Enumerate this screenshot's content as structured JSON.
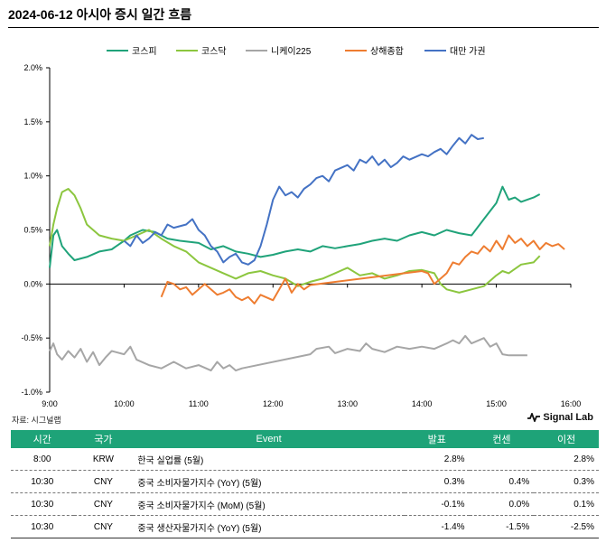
{
  "title": "2024-06-12 아시아 증시 일간 흐름",
  "source": "자료: 시그널랩",
  "brand": "Signal Lab",
  "chart_data": {
    "type": "line",
    "x_ticks": [
      "9:00",
      "10:00",
      "11:00",
      "12:00",
      "13:00",
      "14:00",
      "15:00",
      "16:00"
    ],
    "y_ticks": [
      "2.0%",
      "1.5%",
      "1.0%",
      "0.5%",
      "0.0%",
      "-0.5%",
      "-1.0%"
    ],
    "ylim": [
      -1.0,
      2.0
    ],
    "xlim": [
      "9:00",
      "16:00"
    ],
    "legend_position": "top",
    "grid": false,
    "series": [
      {
        "name": "코스피",
        "color": "#20a37a",
        "points": [
          [
            "9:00",
            0.15
          ],
          [
            "9:03",
            0.45
          ],
          [
            "9:06",
            0.5
          ],
          [
            "9:10",
            0.35
          ],
          [
            "9:15",
            0.28
          ],
          [
            "9:20",
            0.22
          ],
          [
            "9:30",
            0.25
          ],
          [
            "9:40",
            0.3
          ],
          [
            "9:50",
            0.32
          ],
          [
            "10:00",
            0.4
          ],
          [
            "10:05",
            0.45
          ],
          [
            "10:15",
            0.5
          ],
          [
            "10:25",
            0.48
          ],
          [
            "10:35",
            0.42
          ],
          [
            "10:45",
            0.4
          ],
          [
            "11:00",
            0.38
          ],
          [
            "11:10",
            0.32
          ],
          [
            "11:20",
            0.35
          ],
          [
            "11:30",
            0.3
          ],
          [
            "11:40",
            0.28
          ],
          [
            "11:50",
            0.25
          ],
          [
            "12:00",
            0.27
          ],
          [
            "12:10",
            0.3
          ],
          [
            "12:20",
            0.32
          ],
          [
            "12:30",
            0.3
          ],
          [
            "12:40",
            0.35
          ],
          [
            "12:50",
            0.33
          ],
          [
            "13:00",
            0.35
          ],
          [
            "13:10",
            0.37
          ],
          [
            "13:20",
            0.4
          ],
          [
            "13:30",
            0.42
          ],
          [
            "13:40",
            0.4
          ],
          [
            "13:50",
            0.45
          ],
          [
            "14:00",
            0.48
          ],
          [
            "14:10",
            0.45
          ],
          [
            "14:20",
            0.5
          ],
          [
            "14:30",
            0.47
          ],
          [
            "14:40",
            0.45
          ],
          [
            "14:50",
            0.6
          ],
          [
            "15:00",
            0.75
          ],
          [
            "15:05",
            0.9
          ],
          [
            "15:10",
            0.78
          ],
          [
            "15:15",
            0.8
          ],
          [
            "15:20",
            0.76
          ],
          [
            "15:30",
            0.8
          ],
          [
            "15:35",
            0.83
          ]
        ]
      },
      {
        "name": "코스닥",
        "color": "#8cc63f",
        "points": [
          [
            "9:00",
            0.35
          ],
          [
            "9:03",
            0.55
          ],
          [
            "9:06",
            0.7
          ],
          [
            "9:10",
            0.85
          ],
          [
            "9:15",
            0.88
          ],
          [
            "9:20",
            0.82
          ],
          [
            "9:25",
            0.7
          ],
          [
            "9:30",
            0.55
          ],
          [
            "9:40",
            0.45
          ],
          [
            "9:50",
            0.42
          ],
          [
            "10:00",
            0.4
          ],
          [
            "10:10",
            0.45
          ],
          [
            "10:20",
            0.5
          ],
          [
            "10:30",
            0.42
          ],
          [
            "10:40",
            0.35
          ],
          [
            "10:50",
            0.3
          ],
          [
            "11:00",
            0.2
          ],
          [
            "11:10",
            0.15
          ],
          [
            "11:20",
            0.1
          ],
          [
            "11:30",
            0.05
          ],
          [
            "11:40",
            0.1
          ],
          [
            "11:50",
            0.12
          ],
          [
            "12:00",
            0.08
          ],
          [
            "12:10",
            0.05
          ],
          [
            "12:20",
            -0.02
          ],
          [
            "12:30",
            0.02
          ],
          [
            "12:40",
            0.05
          ],
          [
            "12:50",
            0.1
          ],
          [
            "13:00",
            0.15
          ],
          [
            "13:10",
            0.08
          ],
          [
            "13:20",
            0.1
          ],
          [
            "13:30",
            0.05
          ],
          [
            "13:40",
            0.08
          ],
          [
            "13:50",
            0.12
          ],
          [
            "14:00",
            0.13
          ],
          [
            "14:10",
            0.1
          ],
          [
            "14:15",
            0.0
          ],
          [
            "14:20",
            -0.05
          ],
          [
            "14:30",
            -0.08
          ],
          [
            "14:40",
            -0.05
          ],
          [
            "14:50",
            -0.02
          ],
          [
            "15:00",
            0.08
          ],
          [
            "15:05",
            0.12
          ],
          [
            "15:10",
            0.1
          ],
          [
            "15:20",
            0.18
          ],
          [
            "15:30",
            0.2
          ],
          [
            "15:35",
            0.26
          ]
        ]
      },
      {
        "name": "니케이225",
        "color": "#a6a6a6",
        "points": [
          [
            "9:00",
            -0.62
          ],
          [
            "9:03",
            -0.55
          ],
          [
            "9:06",
            -0.65
          ],
          [
            "9:10",
            -0.7
          ],
          [
            "9:15",
            -0.62
          ],
          [
            "9:20",
            -0.68
          ],
          [
            "9:25",
            -0.6
          ],
          [
            "9:30",
            -0.72
          ],
          [
            "9:35",
            -0.63
          ],
          [
            "9:40",
            -0.75
          ],
          [
            "9:45",
            -0.68
          ],
          [
            "9:50",
            -0.62
          ],
          [
            "10:00",
            -0.65
          ],
          [
            "10:05",
            -0.58
          ],
          [
            "10:10",
            -0.7
          ],
          [
            "10:20",
            -0.75
          ],
          [
            "10:30",
            -0.78
          ],
          [
            "10:40",
            -0.72
          ],
          [
            "10:50",
            -0.78
          ],
          [
            "11:00",
            -0.75
          ],
          [
            "11:10",
            -0.8
          ],
          [
            "11:15",
            -0.72
          ],
          [
            "11:20",
            -0.78
          ],
          [
            "11:25",
            -0.75
          ],
          [
            "11:30",
            -0.8
          ],
          [
            "11:35",
            -0.78
          ],
          [
            "12:30",
            -0.65
          ],
          [
            "12:35",
            -0.6
          ],
          [
            "12:45",
            -0.58
          ],
          [
            "12:50",
            -0.64
          ],
          [
            "13:00",
            -0.6
          ],
          [
            "13:10",
            -0.62
          ],
          [
            "13:15",
            -0.55
          ],
          [
            "13:20",
            -0.6
          ],
          [
            "13:30",
            -0.63
          ],
          [
            "13:40",
            -0.58
          ],
          [
            "13:50",
            -0.6
          ],
          [
            "14:00",
            -0.58
          ],
          [
            "14:10",
            -0.6
          ],
          [
            "14:20",
            -0.55
          ],
          [
            "14:25",
            -0.52
          ],
          [
            "14:30",
            -0.55
          ],
          [
            "14:35",
            -0.48
          ],
          [
            "14:40",
            -0.55
          ],
          [
            "14:50",
            -0.5
          ],
          [
            "14:55",
            -0.58
          ],
          [
            "15:00",
            -0.55
          ],
          [
            "15:05",
            -0.65
          ],
          [
            "15:10",
            -0.66
          ],
          [
            "15:20",
            -0.66
          ],
          [
            "15:25",
            -0.66
          ]
        ]
      },
      {
        "name": "상해종합",
        "color": "#ee7d31",
        "points": [
          [
            "10:30",
            -0.12
          ],
          [
            "10:35",
            0.02
          ],
          [
            "10:40",
            0.0
          ],
          [
            "10:45",
            -0.05
          ],
          [
            "10:50",
            -0.03
          ],
          [
            "10:55",
            -0.1
          ],
          [
            "11:00",
            -0.05
          ],
          [
            "11:05",
            0.0
          ],
          [
            "11:10",
            -0.05
          ],
          [
            "11:15",
            -0.1
          ],
          [
            "11:20",
            -0.08
          ],
          [
            "11:25",
            -0.05
          ],
          [
            "11:30",
            -0.12
          ],
          [
            "11:35",
            -0.15
          ],
          [
            "11:40",
            -0.12
          ],
          [
            "11:45",
            -0.18
          ],
          [
            "11:50",
            -0.1
          ],
          [
            "12:00",
            -0.15
          ],
          [
            "12:05",
            -0.05
          ],
          [
            "12:10",
            0.05
          ],
          [
            "12:15",
            -0.08
          ],
          [
            "12:20",
            0.0
          ],
          [
            "12:25",
            -0.05
          ],
          [
            "12:30",
            -0.01
          ],
          [
            "14:00",
            0.12
          ],
          [
            "14:05",
            0.1
          ],
          [
            "14:10",
            0.0
          ],
          [
            "14:15",
            0.05
          ],
          [
            "14:20",
            0.1
          ],
          [
            "14:25",
            0.2
          ],
          [
            "14:30",
            0.18
          ],
          [
            "14:35",
            0.25
          ],
          [
            "14:40",
            0.3
          ],
          [
            "14:45",
            0.28
          ],
          [
            "14:50",
            0.35
          ],
          [
            "14:55",
            0.3
          ],
          [
            "15:00",
            0.4
          ],
          [
            "15:05",
            0.32
          ],
          [
            "15:10",
            0.45
          ],
          [
            "15:15",
            0.38
          ],
          [
            "15:20",
            0.42
          ],
          [
            "15:25",
            0.35
          ],
          [
            "15:30",
            0.4
          ],
          [
            "15:35",
            0.32
          ],
          [
            "15:40",
            0.38
          ],
          [
            "15:45",
            0.35
          ],
          [
            "15:50",
            0.37
          ],
          [
            "15:55",
            0.32
          ]
        ]
      },
      {
        "name": "대만 가권",
        "color": "#4472c4",
        "points": [
          [
            "10:00",
            0.4
          ],
          [
            "10:05",
            0.35
          ],
          [
            "10:10",
            0.45
          ],
          [
            "10:15",
            0.38
          ],
          [
            "10:20",
            0.42
          ],
          [
            "10:25",
            0.48
          ],
          [
            "10:30",
            0.45
          ],
          [
            "10:35",
            0.55
          ],
          [
            "10:40",
            0.52
          ],
          [
            "10:50",
            0.55
          ],
          [
            "10:55",
            0.6
          ],
          [
            "11:00",
            0.5
          ],
          [
            "11:05",
            0.45
          ],
          [
            "11:10",
            0.35
          ],
          [
            "11:15",
            0.3
          ],
          [
            "11:20",
            0.2
          ],
          [
            "11:25",
            0.25
          ],
          [
            "11:30",
            0.28
          ],
          [
            "11:35",
            0.2
          ],
          [
            "11:40",
            0.18
          ],
          [
            "11:45",
            0.22
          ],
          [
            "11:50",
            0.35
          ],
          [
            "11:55",
            0.55
          ],
          [
            "12:00",
            0.78
          ],
          [
            "12:05",
            0.9
          ],
          [
            "12:10",
            0.82
          ],
          [
            "12:15",
            0.85
          ],
          [
            "12:20",
            0.8
          ],
          [
            "12:25",
            0.88
          ],
          [
            "12:30",
            0.92
          ],
          [
            "12:35",
            0.98
          ],
          [
            "12:40",
            1.0
          ],
          [
            "12:45",
            0.95
          ],
          [
            "12:50",
            1.05
          ],
          [
            "13:00",
            1.1
          ],
          [
            "13:05",
            1.05
          ],
          [
            "13:10",
            1.15
          ],
          [
            "13:15",
            1.12
          ],
          [
            "13:20",
            1.18
          ],
          [
            "13:25",
            1.1
          ],
          [
            "13:30",
            1.15
          ],
          [
            "13:35",
            1.08
          ],
          [
            "13:40",
            1.12
          ],
          [
            "13:45",
            1.18
          ],
          [
            "13:50",
            1.15
          ],
          [
            "14:00",
            1.2
          ],
          [
            "14:05",
            1.18
          ],
          [
            "14:10",
            1.22
          ],
          [
            "14:15",
            1.25
          ],
          [
            "14:20",
            1.2
          ],
          [
            "14:25",
            1.28
          ],
          [
            "14:30",
            1.35
          ],
          [
            "14:35",
            1.3
          ],
          [
            "14:40",
            1.38
          ],
          [
            "14:45",
            1.34
          ],
          [
            "14:50",
            1.35
          ]
        ]
      }
    ]
  },
  "table": {
    "headers": [
      "시간",
      "국가",
      "Event",
      "발표",
      "컨센",
      "이전"
    ],
    "rows": [
      [
        "8:00",
        "KRW",
        "한국 실업률 (5월)",
        "2.8%",
        "",
        "2.8%"
      ],
      [
        "10:30",
        "CNY",
        "중국 소비자물가지수 (YoY) (5월)",
        "0.3%",
        "0.4%",
        "0.3%"
      ],
      [
        "10:30",
        "CNY",
        "중국 소비자물가지수 (MoM) (5월)",
        "-0.1%",
        "0.0%",
        "0.1%"
      ],
      [
        "10:30",
        "CNY",
        "중국 생산자물가지수 (YoY) (5월)",
        "-1.4%",
        "-1.5%",
        "-2.5%"
      ]
    ]
  }
}
